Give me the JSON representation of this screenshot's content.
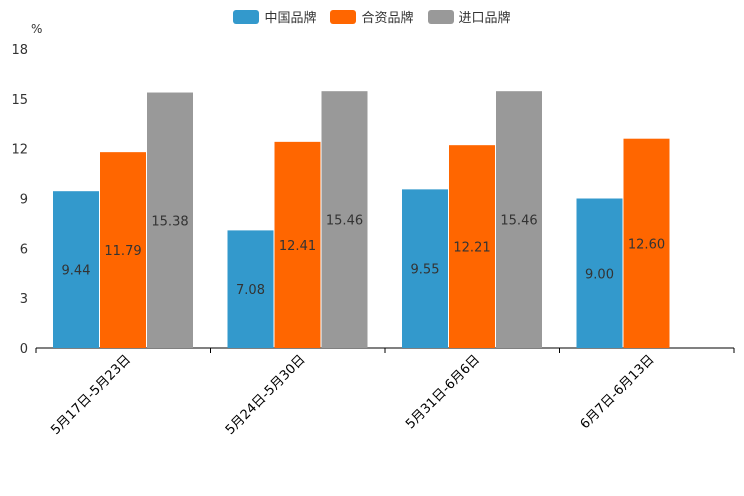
{
  "chart_data": {
    "type": "bar",
    "unit": "%",
    "categories": [
      "5月17日-5月23日",
      "5月24日-5月30日",
      "5月31日-6月6日",
      "6月7日-6月13日"
    ],
    "series": [
      {
        "name": "中国品牌",
        "color": "#3399cc",
        "values": [
          9.44,
          7.08,
          9.55,
          9.0
        ],
        "labels": [
          "9.44",
          "7.08",
          "9.55",
          "9.00"
        ]
      },
      {
        "name": "合资品牌",
        "color": "#ff6600",
        "values": [
          11.79,
          12.41,
          12.21,
          12.6
        ],
        "labels": [
          "11.79",
          "12.41",
          "12.21",
          "12.60"
        ]
      },
      {
        "name": "进口品牌",
        "color": "#999999",
        "values": [
          15.38,
          15.46,
          15.46,
          null
        ],
        "labels": [
          "15.38",
          "15.46",
          "15.46",
          null
        ]
      }
    ],
    "ylim": [
      0,
      18
    ],
    "yticks": [
      "0",
      "3",
      "6",
      "9",
      "12",
      "15",
      "18"
    ],
    "legend_position": "top-center"
  }
}
